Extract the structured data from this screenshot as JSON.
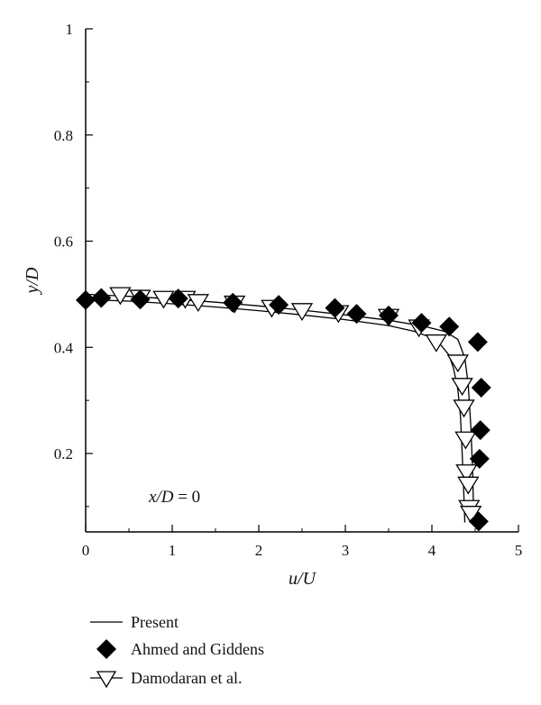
{
  "chart_data": {
    "type": "scatter",
    "xlabel": "u/U",
    "ylabel": "y/D",
    "xlim": [
      0,
      5
    ],
    "ylim": [
      0.05,
      1
    ],
    "x_ticks": [
      0,
      1,
      2,
      3,
      4,
      5
    ],
    "y_ticks": [
      0.2,
      0.4,
      0.6,
      0.8,
      1
    ],
    "x_tick_labels": [
      "0",
      "1",
      "2",
      "3",
      "4",
      "5"
    ],
    "y_tick_labels": [
      "0.2",
      "0.4",
      "0.6",
      "0.8",
      "1"
    ],
    "annotation": {
      "var": "x/D",
      "rest": " = 0"
    },
    "legend_position": "bottom-left",
    "series": [
      {
        "name": "Present",
        "kind": "line",
        "points": [
          [
            0,
            0.49
          ],
          [
            0.5,
            0.487
          ],
          [
            1,
            0.482
          ],
          [
            1.5,
            0.476
          ],
          [
            2,
            0.469
          ],
          [
            2.5,
            0.461
          ],
          [
            3,
            0.452
          ],
          [
            3.5,
            0.441
          ],
          [
            3.8,
            0.43
          ],
          [
            4.0,
            0.418
          ],
          [
            4.1,
            0.405
          ],
          [
            4.2,
            0.385
          ],
          [
            4.25,
            0.36
          ],
          [
            4.3,
            0.32
          ],
          [
            4.33,
            0.27
          ],
          [
            4.35,
            0.2
          ],
          [
            4.37,
            0.12
          ],
          [
            4.38,
            0.07
          ]
        ]
      },
      {
        "name": "Present",
        "kind": "line",
        "points": [
          [
            0,
            0.5
          ],
          [
            0.5,
            0.496
          ],
          [
            1,
            0.491
          ],
          [
            1.5,
            0.485
          ],
          [
            2,
            0.478
          ],
          [
            2.5,
            0.47
          ],
          [
            3,
            0.461
          ],
          [
            3.5,
            0.451
          ],
          [
            3.9,
            0.44
          ],
          [
            4.15,
            0.43
          ],
          [
            4.3,
            0.415
          ],
          [
            4.38,
            0.38
          ],
          [
            4.42,
            0.33
          ],
          [
            4.45,
            0.25
          ],
          [
            4.47,
            0.17
          ],
          [
            4.48,
            0.1
          ],
          [
            4.49,
            0.07
          ]
        ]
      },
      {
        "name": "Ahmed and Giddens",
        "kind": "diamond",
        "points": [
          [
            0,
            0.489
          ],
          [
            0.18,
            0.493
          ],
          [
            0.63,
            0.49
          ],
          [
            1.07,
            0.492
          ],
          [
            1.7,
            0.484
          ],
          [
            2.23,
            0.48
          ],
          [
            2.88,
            0.474
          ],
          [
            3.13,
            0.463
          ],
          [
            3.5,
            0.46
          ],
          [
            3.88,
            0.446
          ],
          [
            4.2,
            0.439
          ],
          [
            4.53,
            0.41
          ],
          [
            4.57,
            0.324
          ],
          [
            4.56,
            0.244
          ],
          [
            4.55,
            0.19
          ],
          [
            4.54,
            0.072
          ]
        ]
      },
      {
        "name": "Damodaran et al.",
        "kind": "triangle",
        "points": [
          [
            0.4,
            0.497
          ],
          [
            0.63,
            0.492
          ],
          [
            0.9,
            0.49
          ],
          [
            1.15,
            0.49
          ],
          [
            1.3,
            0.484
          ],
          [
            1.72,
            0.481
          ],
          [
            2.15,
            0.473
          ],
          [
            2.5,
            0.467
          ],
          [
            2.92,
            0.463
          ],
          [
            3.5,
            0.456
          ],
          [
            3.85,
            0.436
          ],
          [
            4.05,
            0.408
          ],
          [
            4.3,
            0.37
          ],
          [
            4.35,
            0.326
          ],
          [
            4.37,
            0.285
          ],
          [
            4.39,
            0.225
          ],
          [
            4.4,
            0.163
          ],
          [
            4.42,
            0.14
          ],
          [
            4.43,
            0.096
          ],
          [
            4.45,
            0.085
          ]
        ]
      }
    ]
  },
  "legend": [
    {
      "label": "Present",
      "kind": "line"
    },
    {
      "label": "Ahmed and Giddens",
      "kind": "diamond"
    },
    {
      "label": "Damodaran et al.",
      "kind": "triangle"
    }
  ]
}
